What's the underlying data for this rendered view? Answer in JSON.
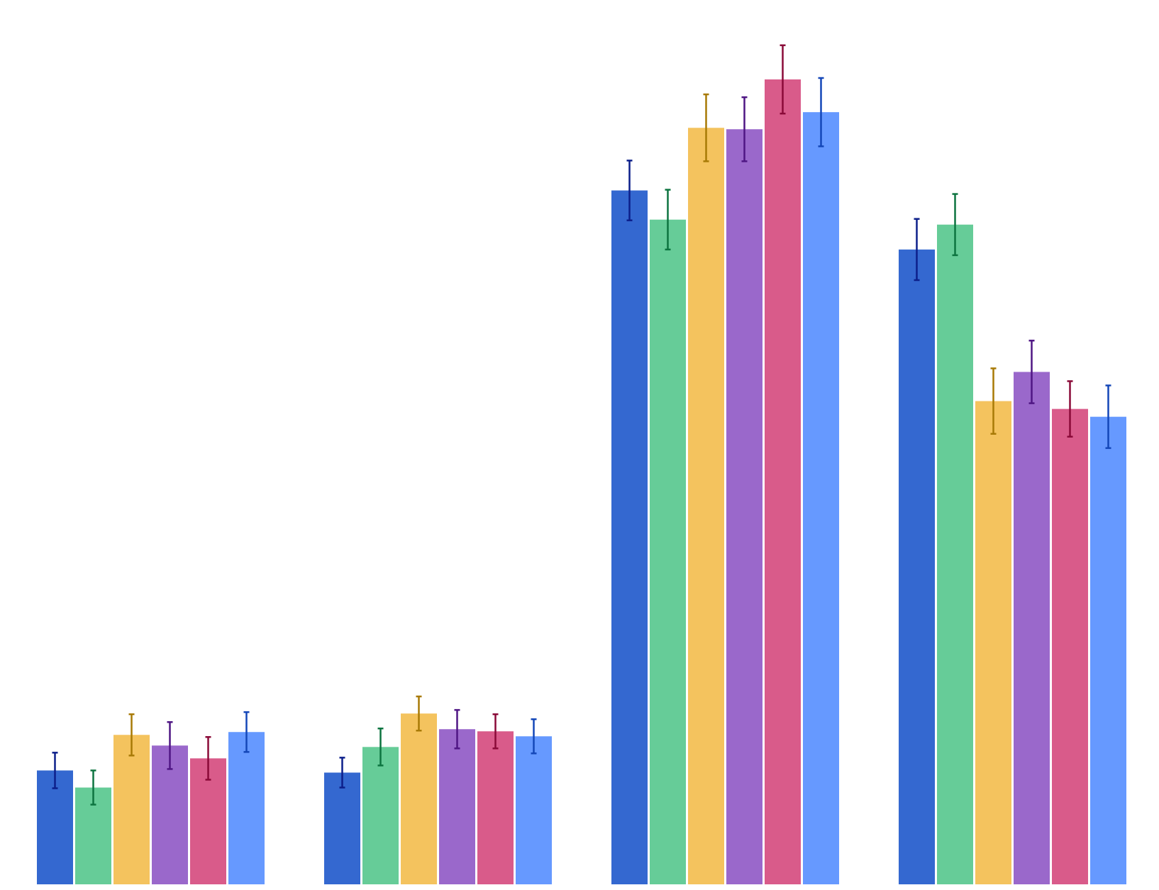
{
  "chart_data": {
    "type": "bar",
    "title": "",
    "xlabel": "",
    "ylabel": "",
    "categories": [
      "",
      "",
      "",
      ""
    ],
    "ylim": [
      0,
      1130
    ],
    "grid": false,
    "legend": "none",
    "series": [
      {
        "color": "#3468D0",
        "error_color": "#0C1F8A",
        "values": [
          160,
          157,
          975,
          892
        ],
        "errors": [
          25,
          21,
          42,
          43
        ]
      },
      {
        "color": "#66CC98",
        "error_color": "#0D7440",
        "values": [
          136,
          193,
          934,
          927
        ],
        "errors": [
          24,
          26,
          42,
          43
        ]
      },
      {
        "color": "#F4C35E",
        "error_color": "#A87A06",
        "values": [
          210,
          240,
          1063,
          679
        ],
        "errors": [
          29,
          24,
          47,
          46
        ]
      },
      {
        "color": "#9A68CB",
        "error_color": "#4F1684",
        "values": [
          195,
          218,
          1061,
          720
        ],
        "errors": [
          33,
          27,
          45,
          44
        ]
      },
      {
        "color": "#D95B8A",
        "error_color": "#8A0A38",
        "values": [
          177,
          215,
          1131,
          668
        ],
        "errors": [
          30,
          24,
          48,
          39
        ]
      },
      {
        "color": "#6699FF",
        "error_color": "#1447B8",
        "values": [
          214,
          208,
          1085,
          657
        ],
        "errors": [
          28,
          24,
          48,
          44
        ]
      }
    ]
  }
}
